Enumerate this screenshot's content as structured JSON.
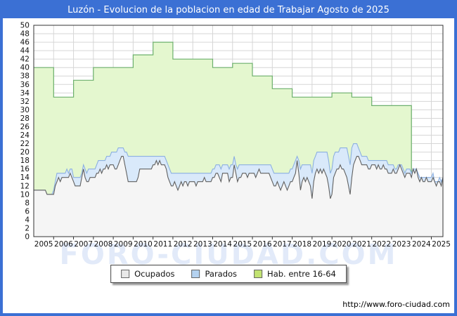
{
  "title": "Luzón - Evolucion de la poblacion en edad de Trabajar Agosto de 2025",
  "watermark": "FORO-CIUDAD.COM",
  "url": "http://www.foro-ciudad.com",
  "legend": {
    "items": [
      {
        "label": "Ocupados",
        "chip": "ocupados_chip"
      },
      {
        "label": "Parados",
        "chip": "parados_chip"
      },
      {
        "label": "Hab. entre 16-64",
        "chip": "hab_chip"
      }
    ]
  },
  "colors": {
    "frame_blue": "#3b70d4",
    "title_text": "#ffffff",
    "plot_border": "#333333",
    "grid": "#d6d6d6",
    "axis_text": "#111111",
    "ocupados_fill": "#f5f5f5",
    "ocupados_line": "#606060",
    "ocupados_chip": "#e8e8e8",
    "parados_fill": "#d9e9fa",
    "parados_line": "#8cb0e0",
    "parados_chip": "#b4d2f0",
    "hab_fill": "#e4f7cf",
    "hab_line": "#6cb06c",
    "hab_chip": "#c2e372",
    "watermark": "rgba(59,112,212,0.15)"
  },
  "chart_data": {
    "type": "area",
    "title": "Luzón - Evolucion de la poblacion en edad de Trabajar Agosto de 2025",
    "xlabel": "",
    "ylabel": "",
    "y_axis": {
      "min": 0,
      "max": 50,
      "step": 2
    },
    "grid": true,
    "legend_position": "bottom",
    "x_start": "2005-01",
    "x_end": "2025-08",
    "years": [
      2005,
      2006,
      2007,
      2008,
      2009,
      2010,
      2011,
      2012,
      2013,
      2014,
      2015,
      2016,
      2017,
      2018,
      2019,
      2020,
      2021,
      2022,
      2023,
      2024,
      2025
    ],
    "series": [
      {
        "name": "Ocupados",
        "resolution": "monthly",
        "values": [
          11,
          11,
          11,
          11,
          11,
          11,
          11,
          11,
          10,
          10,
          10,
          10,
          10,
          12,
          13,
          14,
          13,
          14,
          14,
          14,
          14,
          14,
          15,
          14,
          13,
          12,
          12,
          12,
          12,
          14,
          16,
          14,
          13,
          13,
          14,
          14,
          14,
          14,
          15,
          15,
          16,
          15,
          16,
          16,
          17,
          16,
          17,
          17,
          17,
          16,
          16,
          17,
          18,
          19,
          19,
          17,
          15,
          13,
          13,
          13,
          13,
          13,
          13,
          14,
          16,
          16,
          16,
          16,
          16,
          16,
          16,
          16,
          17,
          17,
          18,
          17,
          18,
          17,
          17,
          17,
          16,
          14,
          13,
          12,
          12,
          13,
          12,
          11,
          12,
          13,
          12,
          13,
          13,
          12,
          13,
          13,
          13,
          13,
          12,
          13,
          13,
          13,
          13,
          14,
          13,
          13,
          13,
          13,
          14,
          14,
          15,
          15,
          14,
          13,
          15,
          15,
          15,
          15,
          13,
          14,
          14,
          17,
          15,
          13,
          14,
          14,
          15,
          15,
          15,
          14,
          15,
          15,
          15,
          15,
          14,
          15,
          16,
          15,
          15,
          15,
          15,
          15,
          15,
          14,
          13,
          12,
          12,
          13,
          12,
          11,
          12,
          13,
          12,
          11,
          12,
          13,
          13,
          14,
          15,
          18,
          15,
          11,
          13,
          14,
          13,
          14,
          13,
          12,
          9,
          13,
          15,
          16,
          15,
          16,
          15,
          16,
          15,
          14,
          12,
          9,
          10,
          14,
          15,
          16,
          16,
          17,
          16,
          16,
          15,
          14,
          12,
          10,
          14,
          17,
          18,
          19,
          19,
          18,
          17,
          17,
          17,
          17,
          16,
          16,
          17,
          17,
          17,
          16,
          17,
          16,
          16,
          17,
          16,
          16,
          15,
          15,
          15,
          16,
          15,
          15,
          16,
          17,
          16,
          15,
          14,
          15,
          15,
          15,
          14,
          16,
          15,
          16,
          14,
          13,
          14,
          13,
          13,
          14,
          13,
          13,
          13,
          14,
          13,
          12,
          13,
          13,
          12,
          14
        ]
      },
      {
        "name": "Parados",
        "resolution": "monthly",
        "stacked_on": "Ocupados",
        "values": [
          0,
          0,
          0,
          0,
          0,
          0,
          0,
          0,
          0,
          0,
          0,
          0,
          1,
          1,
          2,
          1,
          2,
          1,
          1,
          1,
          2,
          1,
          1,
          2,
          1,
          2,
          2,
          2,
          2,
          1,
          1,
          2,
          2,
          3,
          2,
          2,
          2,
          2,
          2,
          3,
          2,
          3,
          2,
          2,
          2,
          3,
          2,
          3,
          3,
          4,
          4,
          4,
          3,
          2,
          2,
          3,
          5,
          6,
          6,
          6,
          6,
          6,
          6,
          5,
          3,
          3,
          3,
          3,
          3,
          3,
          3,
          3,
          2,
          2,
          1,
          2,
          1,
          2,
          2,
          2,
          2,
          3,
          3,
          3,
          3,
          2,
          3,
          4,
          3,
          2,
          3,
          2,
          2,
          3,
          2,
          2,
          2,
          2,
          3,
          2,
          2,
          2,
          2,
          1,
          2,
          2,
          2,
          2,
          2,
          2,
          2,
          2,
          3,
          3,
          2,
          2,
          2,
          2,
          3,
          3,
          3,
          2,
          2,
          3,
          3,
          3,
          2,
          2,
          2,
          3,
          2,
          2,
          2,
          2,
          3,
          2,
          1,
          2,
          2,
          2,
          2,
          2,
          2,
          3,
          3,
          3,
          3,
          2,
          3,
          4,
          3,
          2,
          3,
          4,
          3,
          3,
          3,
          3,
          3,
          1,
          3,
          5,
          4,
          3,
          4,
          3,
          4,
          5,
          6,
          5,
          4,
          4,
          5,
          4,
          5,
          4,
          5,
          6,
          6,
          6,
          6,
          5,
          5,
          4,
          4,
          4,
          5,
          5,
          6,
          7,
          7,
          7,
          7,
          5,
          4,
          3,
          2,
          2,
          2,
          2,
          2,
          2,
          2,
          2,
          1,
          1,
          1,
          2,
          1,
          2,
          2,
          1,
          2,
          2,
          2,
          2,
          2,
          1,
          1,
          1,
          1,
          0,
          1,
          1,
          1,
          1,
          1,
          1,
          1,
          0,
          1,
          0,
          1,
          1,
          0,
          1,
          1,
          0,
          1,
          1,
          1,
          1,
          0,
          1,
          0,
          1,
          1,
          0
        ]
      },
      {
        "name": "Hab. entre 16-64",
        "resolution": "annual_step",
        "years": [
          2005,
          2006,
          2007,
          2008,
          2009,
          2010,
          2011,
          2012,
          2013,
          2014,
          2015,
          2016,
          2017,
          2018,
          2019,
          2020,
          2021,
          2022,
          2023
        ],
        "values": [
          40,
          33,
          37,
          40,
          40,
          43,
          46,
          42,
          42,
          40,
          41,
          38,
          35,
          33,
          33,
          34,
          33,
          31,
          31
        ]
      }
    ]
  }
}
